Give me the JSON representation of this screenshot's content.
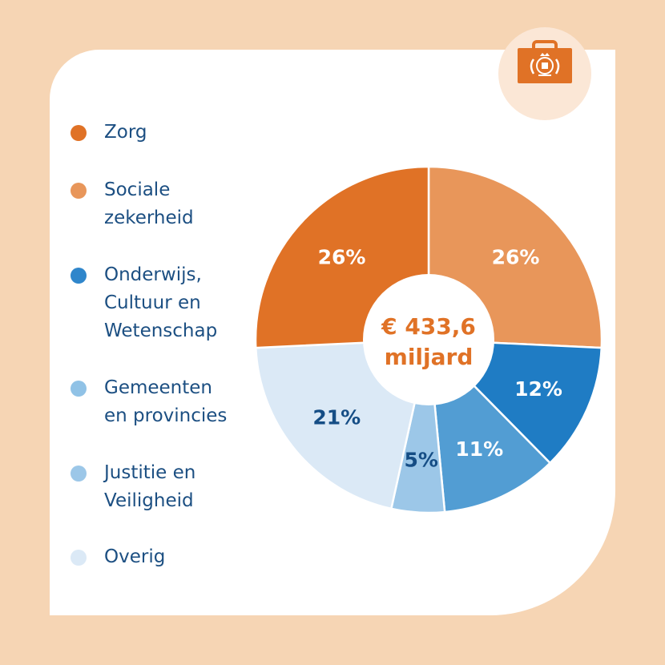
{
  "chart_data": {
    "type": "pie",
    "variant": "donut",
    "center_label": [
      "€ 433,6",
      "miljard"
    ],
    "slices": [
      {
        "name": "Sociale zekerheid",
        "value": 26,
        "label": "26%",
        "color": "#e8965a",
        "label_color": "#ffffff"
      },
      {
        "name": "Onderwijs, Cultuur en Wetenschap",
        "value": 12,
        "label": "12%",
        "color": "#1f7cc4",
        "label_color": "#ffffff"
      },
      {
        "name": "Gemeenten en provincies",
        "value": 11,
        "label": "11%",
        "color": "#529dd3",
        "label_color": "#ffffff"
      },
      {
        "name": "Justitie en Veiligheid",
        "value": 5,
        "label": "5%",
        "color": "#9cc7e8",
        "label_color": "#154d85"
      },
      {
        "name": "Overig",
        "value": 21,
        "label": "21%",
        "color": "#dbe9f6",
        "label_color": "#154d85"
      },
      {
        "name": "Zorg",
        "value": 26,
        "label": "26%",
        "color": "#e07226",
        "label_color": "#ffffff"
      }
    ]
  },
  "legend": {
    "items": [
      {
        "label": "Zorg",
        "color": "#e07226"
      },
      {
        "label": "Sociale zekerheid",
        "color": "#e8965a"
      },
      {
        "label": "Onderwijs, Cultuur en Wetenschap",
        "color": "#2f86cb"
      },
      {
        "label": "Gemeenten en provincies",
        "color": "#90c2e6"
      },
      {
        "label": "Justitie en Veiligheid",
        "color": "#9cc7e8"
      },
      {
        "label": "Overig",
        "color": "#dbe9f6"
      }
    ]
  },
  "logo": {
    "icon": "briefcase-icon",
    "color": "#e07226"
  }
}
